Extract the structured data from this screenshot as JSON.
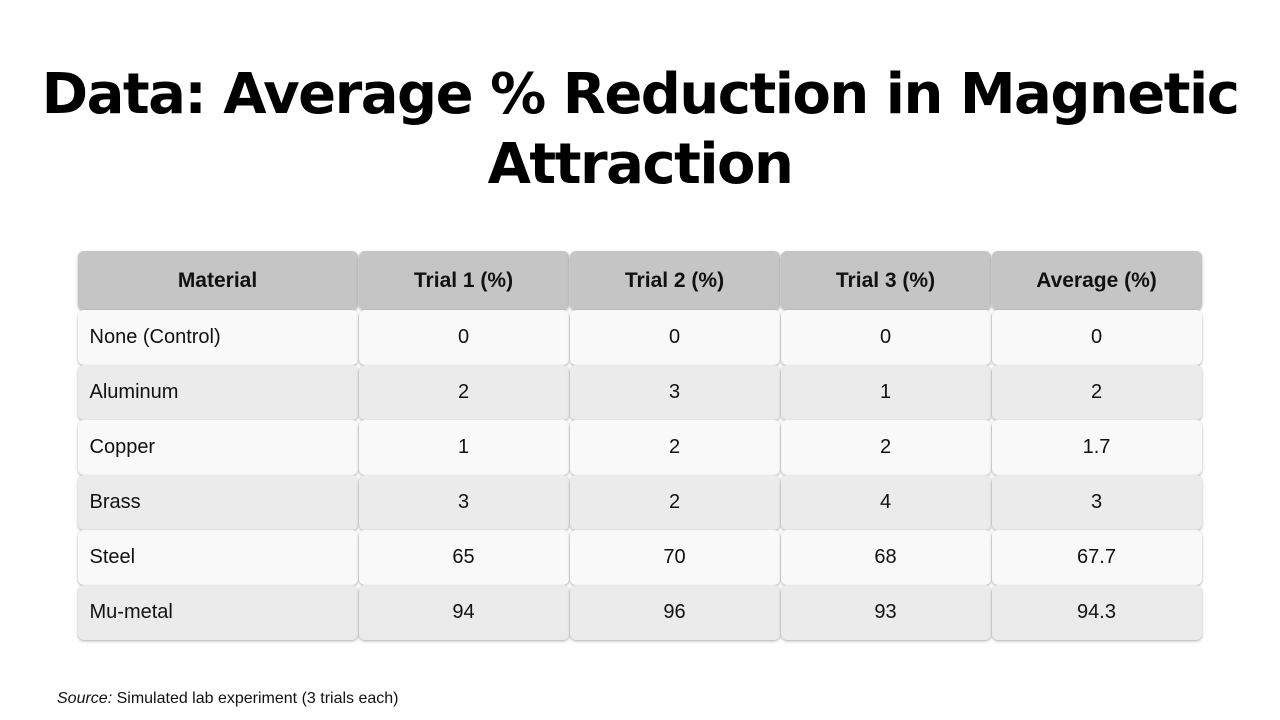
{
  "title": "Data: Average % Reduction in Magnetic Attraction",
  "table": {
    "headers": [
      "Material",
      "Trial 1 (%)",
      "Trial 2 (%)",
      "Trial 3 (%)",
      "Average (%)"
    ],
    "rows": [
      [
        "None (Control)",
        "0",
        "0",
        "0",
        "0"
      ],
      [
        "Aluminum",
        "2",
        "3",
        "1",
        "2"
      ],
      [
        "Copper",
        "1",
        "2",
        "2",
        "1.7"
      ],
      [
        "Brass",
        "3",
        "2",
        "4",
        "3"
      ],
      [
        "Steel",
        "65",
        "70",
        "68",
        "67.7"
      ],
      [
        "Mu-metal",
        "94",
        "96",
        "93",
        "94.3"
      ]
    ]
  },
  "source": {
    "label": "Source:",
    "text": " Simulated lab experiment (3 trials each)"
  },
  "colors": {
    "header_bg": "#c5c5c5",
    "row_light": "#f9f9f9",
    "row_dark": "#ebebeb"
  }
}
